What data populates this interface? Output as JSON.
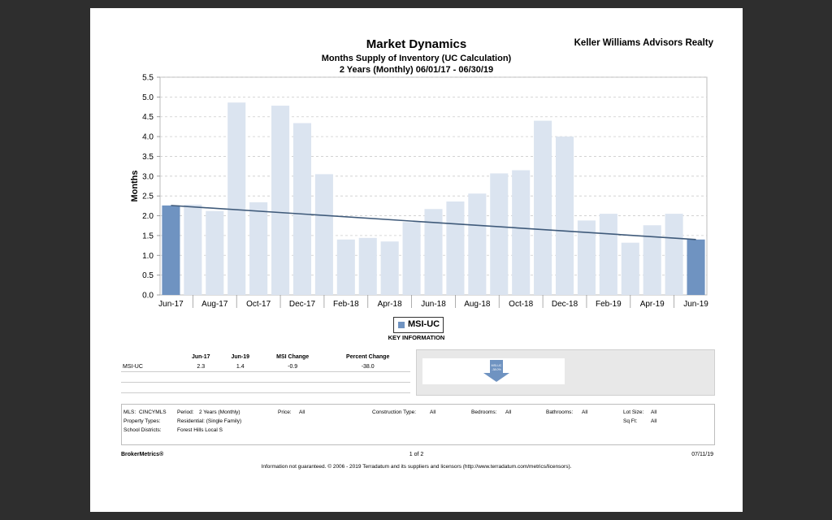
{
  "header": {
    "title": "Market Dynamics",
    "subtitle": "Months Supply of Inventory (UC Calculation)",
    "period": "2 Years (Monthly) 06/01/17 - 06/30/19",
    "brand": "Keller Williams Advisors Realty"
  },
  "chart_data": {
    "type": "bar",
    "ylabel": "Months",
    "ylim": [
      0,
      5.5
    ],
    "yticks": [
      "0.0",
      "0.5",
      "1.0",
      "1.5",
      "2.0",
      "2.5",
      "3.0",
      "3.5",
      "4.0",
      "4.5",
      "5.0",
      "5.5"
    ],
    "grid": true,
    "categories": [
      "Jun-17",
      "Jul-17",
      "Aug-17",
      "Sep-17",
      "Oct-17",
      "Nov-17",
      "Dec-17",
      "Jan-18",
      "Feb-18",
      "Mar-18",
      "Apr-18",
      "May-18",
      "Jun-18",
      "Jul-18",
      "Aug-18",
      "Sep-18",
      "Oct-18",
      "Nov-18",
      "Dec-18",
      "Jan-19",
      "Feb-19",
      "Mar-19",
      "Apr-19",
      "May-19",
      "Jun-19"
    ],
    "xtick_labels": [
      "Jun-17",
      "Aug-17",
      "Oct-17",
      "Dec-17",
      "Feb-18",
      "Apr-18",
      "Jun-18",
      "Aug-18",
      "Oct-18",
      "Dec-18",
      "Feb-19",
      "Apr-19",
      "Jun-19"
    ],
    "series": [
      {
        "name": "MSI-UC",
        "values": [
          2.26,
          2.28,
          2.12,
          4.86,
          2.34,
          4.78,
          4.34,
          3.05,
          1.4,
          1.44,
          1.35,
          1.84,
          2.17,
          2.36,
          2.56,
          3.07,
          3.15,
          4.4,
          4.0,
          1.88,
          2.05,
          1.32,
          1.76,
          2.05,
          1.4
        ]
      }
    ],
    "highlight_indices": [
      0,
      24
    ],
    "trendline": {
      "start": 2.26,
      "end": 1.4
    },
    "colors": {
      "bar": "#dbe4f0",
      "highlight": "#6f93c1",
      "trend": "#3f5a7a"
    }
  },
  "legend": {
    "label": "MSI-UC"
  },
  "key_info": {
    "title": "KEY INFORMATION",
    "headers": [
      "",
      "Jun-17",
      "Jun-19",
      "MSI Change",
      "Percent Change"
    ],
    "rows": [
      [
        "MSI-UC",
        "2.3",
        "1.4",
        "-0.9",
        "-38.0"
      ]
    ],
    "arrow_label": "MSI-UC",
    "arrow_value": "-38.0%"
  },
  "filters": {
    "mls_label": "MLS:",
    "mls_value": "CINCYMLS",
    "period_label": "Period:",
    "period_value": "2 Years (Monthly)",
    "price_label": "Price:",
    "price_value": "All",
    "construction_label": "Construction Type:",
    "construction_value": "All",
    "bedrooms_label": "Bedrooms:",
    "bedrooms_value": "All",
    "bathrooms_label": "Bathrooms:",
    "bathrooms_value": "All",
    "lotsize_label": "Lot Size:",
    "lotsize_value": "All",
    "property_label": "Property Types:",
    "property_value": "Residential: (Single Family)",
    "sqft_label": "Sq Ft:",
    "sqft_value": "All",
    "school_label": "School Districts:",
    "school_value": "Forest Hills Local S"
  },
  "footer": {
    "left": "BrokerMetrics®",
    "page": "1 of 2",
    "date": "07/11/19",
    "disclaimer": "Information not guaranteed.  © 2006 - 2019 Terradatum and its suppliers and licensors (http://www.terradatum.com/metrics/licensors)."
  }
}
